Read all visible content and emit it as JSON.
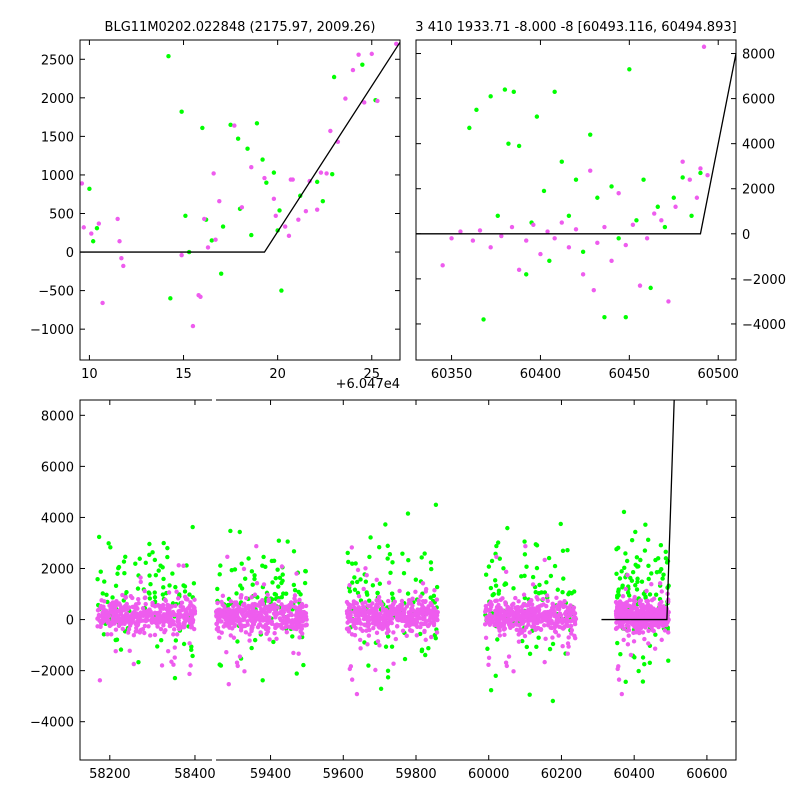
{
  "colors": {
    "green": "#00ff00",
    "magenta": "#ee5cee",
    "line": "#000000"
  },
  "chart_data": [
    {
      "type": "scatter",
      "title": "BLG11M0202.022848 (2175.97, 2009.26)",
      "xlim": [
        9.5,
        26.5
      ],
      "ylim": [
        -1400,
        2750
      ],
      "x_offset_label": "+6.047e4",
      "xticks": [
        10,
        15,
        20,
        25
      ],
      "xtick_labels": [
        "10",
        "15",
        "20",
        "25"
      ],
      "yticks": [
        -1000,
        -500,
        0,
        500,
        1000,
        1500,
        2000,
        2500
      ],
      "ytick_labels": [
        "−1000",
        "−500",
        "0",
        "500",
        "1000",
        "1500",
        "2000",
        "2500"
      ],
      "model_line": [
        [
          9.5,
          0
        ],
        [
          19.3,
          0
        ],
        [
          26.5,
          2720
        ]
      ],
      "series": [
        {
          "color": "green",
          "points": [
            [
              10,
              820
            ],
            [
              10.2,
              140
            ],
            [
              10.4,
              310
            ],
            [
              14.2,
              2540
            ],
            [
              14.3,
              -600
            ],
            [
              14.9,
              1820
            ],
            [
              15.1,
              470
            ],
            [
              15.3,
              0
            ],
            [
              16,
              1610
            ],
            [
              16.2,
              420
            ],
            [
              16.5,
              150
            ],
            [
              17,
              -280
            ],
            [
              17.1,
              330
            ],
            [
              17.5,
              1650
            ],
            [
              17.9,
              1470
            ],
            [
              18,
              560
            ],
            [
              18.4,
              1340
            ],
            [
              18.6,
              220
            ],
            [
              18.9,
              1670
            ],
            [
              19.2,
              1200
            ],
            [
              19.4,
              900
            ],
            [
              19.8,
              1030
            ],
            [
              20,
              280
            ],
            [
              20.1,
              540
            ],
            [
              20.2,
              -500
            ],
            [
              21.2,
              730
            ],
            [
              22.1,
              910
            ],
            [
              22.4,
              660
            ],
            [
              22.9,
              1010
            ],
            [
              23,
              2270
            ],
            [
              24.5,
              2430
            ],
            [
              25.2,
              1970
            ]
          ]
        },
        {
          "color": "magenta",
          "points": [
            [
              9.6,
              890
            ],
            [
              9.7,
              320
            ],
            [
              10.1,
              240
            ],
            [
              10.5,
              370
            ],
            [
              10.7,
              -660
            ],
            [
              11.5,
              430
            ],
            [
              11.6,
              140
            ],
            [
              11.7,
              -80
            ],
            [
              11.8,
              -180
            ],
            [
              14.9,
              -40
            ],
            [
              15.5,
              -960
            ],
            [
              15.8,
              -560
            ],
            [
              15.9,
              -580
            ],
            [
              16.1,
              430
            ],
            [
              16.3,
              60
            ],
            [
              16.6,
              1020
            ],
            [
              16.7,
              160
            ],
            [
              16.9,
              660
            ],
            [
              17.7,
              1640
            ],
            [
              18.1,
              580
            ],
            [
              18.6,
              1100
            ],
            [
              19.3,
              960
            ],
            [
              19.8,
              690
            ],
            [
              19.9,
              470
            ],
            [
              20.4,
              330
            ],
            [
              20.6,
              210
            ],
            [
              20.7,
              940
            ],
            [
              20.8,
              940
            ],
            [
              21.1,
              420
            ],
            [
              21.5,
              530
            ],
            [
              21.7,
              920
            ],
            [
              22.1,
              550
            ],
            [
              22.3,
              1030
            ],
            [
              22.6,
              1020
            ],
            [
              22.8,
              1570
            ],
            [
              23.2,
              1430
            ],
            [
              23.6,
              1990
            ],
            [
              24,
              2360
            ],
            [
              24.3,
              2560
            ],
            [
              24.6,
              1940
            ],
            [
              25,
              2570
            ],
            [
              25.3,
              1960
            ],
            [
              26.3,
              2700
            ]
          ]
        }
      ]
    },
    {
      "type": "scatter",
      "title": "3 410 1933.71 -8.000 -8 [60493.116, 60494.893]",
      "xlim": [
        60330,
        60510
      ],
      "ylim": [
        -5600,
        8600
      ],
      "xticks": [
        60350,
        60400,
        60450,
        60500
      ],
      "xtick_labels": [
        "60350",
        "60400",
        "60450",
        "60500"
      ],
      "yticks": [
        -4000,
        -2000,
        0,
        2000,
        4000,
        6000,
        8000
      ],
      "ytick_labels": [
        "−4000",
        "−2000",
        "0",
        "2000",
        "4000",
        "6000",
        "8000"
      ],
      "y_axis_side": "right",
      "model_line": [
        [
          60330,
          0
        ],
        [
          60490,
          0
        ],
        [
          60510,
          8000
        ]
      ],
      "series": [
        {
          "color": "green",
          "points": [
            [
              60360,
              4700
            ],
            [
              60364,
              5500
            ],
            [
              60368,
              -3800
            ],
            [
              60372,
              6100
            ],
            [
              60376,
              800
            ],
            [
              60380,
              6400
            ],
            [
              60382,
              4000
            ],
            [
              60385,
              6300
            ],
            [
              60388,
              3900
            ],
            [
              60392,
              -1800
            ],
            [
              60395,
              500
            ],
            [
              60398,
              5200
            ],
            [
              60402,
              1900
            ],
            [
              60405,
              -1200
            ],
            [
              60408,
              6300
            ],
            [
              60412,
              3200
            ],
            [
              60416,
              800
            ],
            [
              60420,
              2400
            ],
            [
              60424,
              -800
            ],
            [
              60428,
              4400
            ],
            [
              60432,
              1600
            ],
            [
              60436,
              -3700
            ],
            [
              60440,
              2100
            ],
            [
              60444,
              -200
            ],
            [
              60448,
              -3700
            ],
            [
              60450,
              7300
            ],
            [
              60454,
              600
            ],
            [
              60458,
              2400
            ],
            [
              60462,
              -2400
            ],
            [
              60466,
              1200
            ],
            [
              60470,
              300
            ],
            [
              60475,
              1600
            ],
            [
              60480,
              2500
            ],
            [
              60485,
              800
            ],
            [
              60490,
              2700
            ]
          ]
        },
        {
          "color": "magenta",
          "points": [
            [
              60345,
              -1400
            ],
            [
              60350,
              -200
            ],
            [
              60355,
              100
            ],
            [
              60362,
              -300
            ],
            [
              60366,
              150
            ],
            [
              60372,
              -600
            ],
            [
              60378,
              -100
            ],
            [
              60384,
              300
            ],
            [
              60388,
              -1600
            ],
            [
              60392,
              -300
            ],
            [
              60396,
              400
            ],
            [
              60400,
              -900
            ],
            [
              60404,
              100
            ],
            [
              60408,
              -200
            ],
            [
              60412,
              500
            ],
            [
              60416,
              -600
            ],
            [
              60420,
              200
            ],
            [
              60424,
              -1800
            ],
            [
              60428,
              2800
            ],
            [
              60430,
              -2500
            ],
            [
              60432,
              -400
            ],
            [
              60436,
              300
            ],
            [
              60440,
              -1200
            ],
            [
              60444,
              1800
            ],
            [
              60448,
              -500
            ],
            [
              60452,
              400
            ],
            [
              60456,
              -2300
            ],
            [
              60460,
              -200
            ],
            [
              60464,
              900
            ],
            [
              60468,
              600
            ],
            [
              60472,
              -3000
            ],
            [
              60476,
              1200
            ],
            [
              60480,
              3200
            ],
            [
              60484,
              2400
            ],
            [
              60488,
              1600
            ],
            [
              60490,
              2900
            ],
            [
              60492,
              8300
            ],
            [
              60494,
              2600
            ]
          ]
        }
      ]
    },
    {
      "type": "scatter",
      "xlim": [
        58130,
        60680
      ],
      "ylim": [
        -5500,
        8600
      ],
      "x_break": [
        58440,
        59250
      ],
      "xticks": [
        58200,
        58400,
        59400,
        59600,
        59800,
        60000,
        60200,
        60400,
        60600
      ],
      "xtick_labels": [
        "58200",
        "58400",
        "59400",
        "59600",
        "59800",
        "60000",
        "60200",
        "60400",
        "60600"
      ],
      "yticks": [
        -4000,
        -2000,
        0,
        2000,
        4000,
        6000,
        8000
      ],
      "ytick_labels": [
        "−4000",
        "−2000",
        "0",
        "2000",
        "4000",
        "6000",
        "8000"
      ],
      "model_line": [
        [
          60310,
          0
        ],
        [
          60490,
          0
        ],
        [
          60510,
          8600
        ]
      ],
      "seasons": [
        {
          "x_start": 58170,
          "x_end": 58400,
          "green_extent": 6800,
          "magenta_extent": 5000
        },
        {
          "x_start": 59250,
          "x_end": 59500,
          "green_extent": 8400,
          "magenta_extent": 4000
        },
        {
          "x_start": 59610,
          "x_end": 59860,
          "green_extent": 7000,
          "magenta_extent": 4800
        },
        {
          "x_start": 59990,
          "x_end": 60240,
          "green_extent": 8300,
          "magenta_extent": 4600
        },
        {
          "x_start": 60350,
          "x_end": 60495,
          "green_extent": 7400,
          "magenta_extent": 3800
        }
      ]
    }
  ]
}
